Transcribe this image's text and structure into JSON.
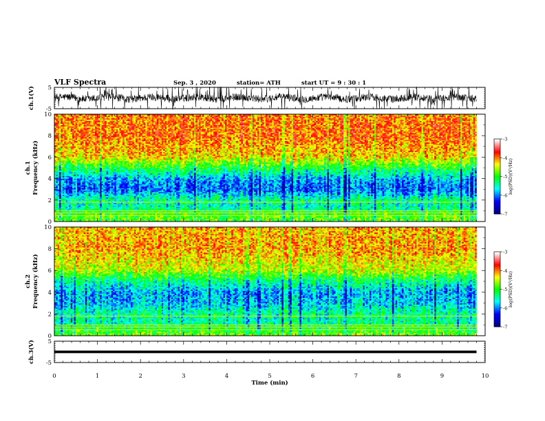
{
  "header": {
    "title": "VLF Spectra",
    "date": "Sep. 3  , 2020",
    "station": "station= ATH",
    "start": "start  UT  =   9  : 30 : 1"
  },
  "chart_data": {
    "type": "heatmap",
    "panels": [
      {
        "id": "ch1-waveform",
        "kind": "waveform",
        "ylabel": "ch.1(V)",
        "yticks": [
          "5",
          "-5"
        ],
        "ylim": [
          -5,
          5
        ]
      },
      {
        "id": "ch1-spectrogram",
        "kind": "spectrogram",
        "ylabel": "ch.1\nFrequency  (kHz)",
        "yticks": [
          "0",
          "2",
          "4",
          "6",
          "8",
          "10"
        ],
        "ylim": [
          0,
          10
        ],
        "colorbar": {
          "label": "log(PSD)(V²/Hz)",
          "ticks": [
            "-3",
            "-4",
            "-5",
            "-6",
            "-7"
          ],
          "range": [
            -7,
            -3
          ]
        }
      },
      {
        "id": "ch2-spectrogram",
        "kind": "spectrogram",
        "ylabel": "ch.2\nFrequency  (kHz)",
        "yticks": [
          "0",
          "2",
          "4",
          "6",
          "8",
          "10"
        ],
        "ylim": [
          0,
          10
        ],
        "colorbar": {
          "label": "log(PSD)(V²/Hz)",
          "ticks": [
            "-3",
            "-4",
            "-5",
            "-6",
            "-7"
          ],
          "range": [
            -7,
            -3
          ]
        }
      },
      {
        "id": "ch3-waveform",
        "kind": "waveform",
        "ylabel": "ch.3(V)",
        "yticks": [
          "5",
          "-5"
        ],
        "ylim": [
          -5,
          5
        ]
      }
    ],
    "x": {
      "label": "Time  (min)",
      "ticks": [
        "0",
        "1",
        "2",
        "3",
        "4",
        "5",
        "6",
        "7",
        "8",
        "9",
        "10"
      ],
      "range": [
        0,
        10
      ],
      "data_end": 9.8
    },
    "colormap": [
      "#00007f",
      "#0000ff",
      "#00ffff",
      "#00ff00",
      "#ffff00",
      "#ff0000",
      "#ffffff"
    ],
    "approx_log_psd_by_frequency_khz": {
      "freq": [
        0,
        0.5,
        1,
        1.5,
        2,
        3,
        4,
        5,
        6,
        8,
        10
      ],
      "ch1": [
        -4.4,
        -4.4,
        -4.9,
        -5.2,
        -5.0,
        -5.9,
        -5.6,
        -4.7,
        -3.7,
        -3.3,
        -3.4
      ],
      "ch2": [
        -4.2,
        -4.6,
        -5.0,
        -5.1,
        -5.0,
        -5.5,
        -5.6,
        -5.0,
        -4.0,
        -3.5,
        -3.6
      ]
    }
  }
}
